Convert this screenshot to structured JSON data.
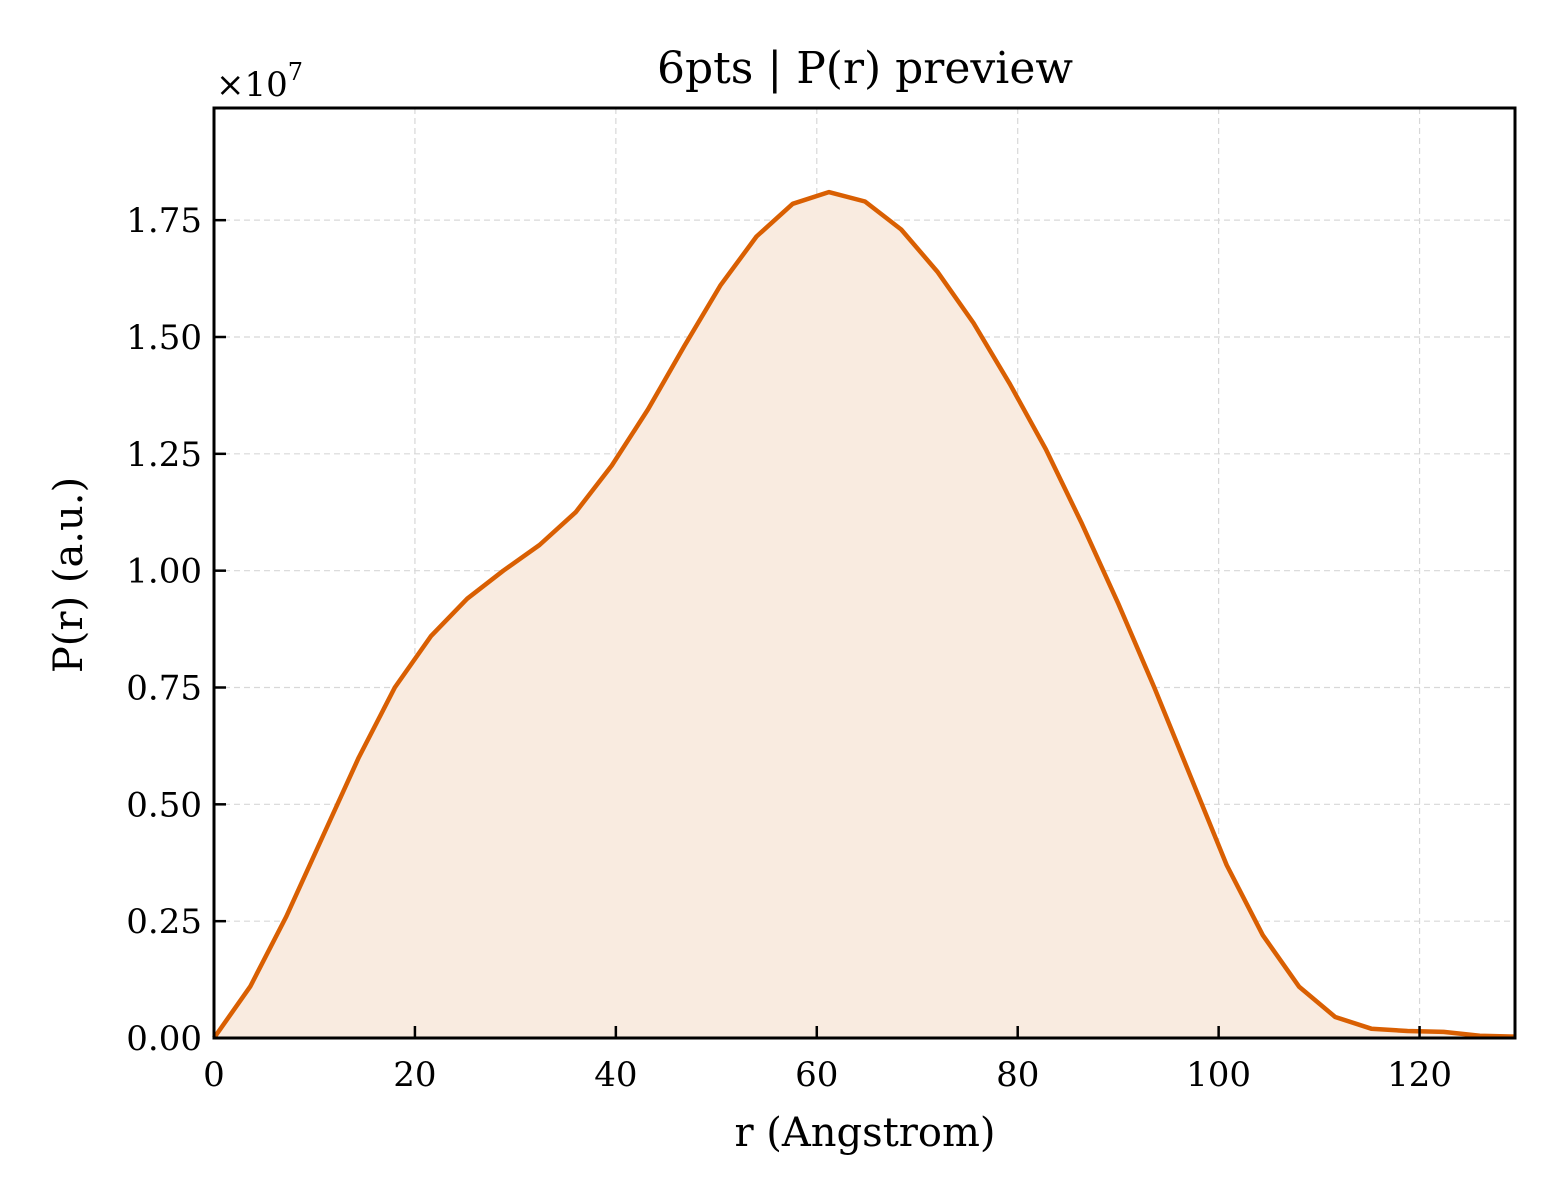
{
  "chart_data": {
    "type": "area",
    "title": "6pts | P(r) preview",
    "xlabel": "r (Angstrom)",
    "ylabel": "P(r) (a.u.)",
    "y_multiplier_label": "×10",
    "y_multiplier_exponent": "7",
    "y_scale": 10000000,
    "xlim": [
      0,
      129.5
    ],
    "ylim": [
      0,
      19900000
    ],
    "grid": true,
    "x_ticks": [
      0,
      20,
      40,
      60,
      80,
      100,
      120
    ],
    "x_tick_labels": [
      "0",
      "20",
      "40",
      "60",
      "80",
      "100",
      "120"
    ],
    "y_ticks": [
      0,
      2500000,
      5000000,
      7500000,
      10000000,
      12500000,
      15000000,
      17500000
    ],
    "y_tick_labels": [
      "0.00",
      "0.25",
      "0.50",
      "0.75",
      "1.00",
      "1.25",
      "1.50",
      "1.75"
    ],
    "line_color": "#d95f02",
    "fill_color": "#f9ebe0",
    "series": [
      {
        "x": [
          0,
          3.6,
          7.2,
          10.8,
          14.4,
          18.0,
          21.6,
          25.2,
          28.8,
          32.4,
          36.0,
          39.6,
          43.2,
          46.8,
          50.4,
          54.0,
          57.6,
          61.2,
          64.8,
          68.4,
          72.0,
          75.6,
          79.2,
          82.8,
          86.4,
          90.0,
          93.6,
          97.2,
          100.8,
          104.4,
          108.0,
          111.6,
          115.2,
          118.8,
          122.4,
          126.0,
          129.5
        ],
        "y": [
          0,
          1100000,
          2600000,
          4300000,
          6000000,
          7500000,
          8600000,
          9400000,
          10000000,
          10550000,
          11250000,
          12250000,
          13450000,
          14800000,
          16100000,
          17150000,
          17850000,
          18100000,
          17900000,
          17300000,
          16400000,
          15300000,
          14000000,
          12600000,
          11000000,
          9300000,
          7500000,
          5600000,
          3700000,
          2200000,
          1100000,
          450000,
          200000,
          150000,
          130000,
          50000,
          30000
        ]
      }
    ]
  }
}
